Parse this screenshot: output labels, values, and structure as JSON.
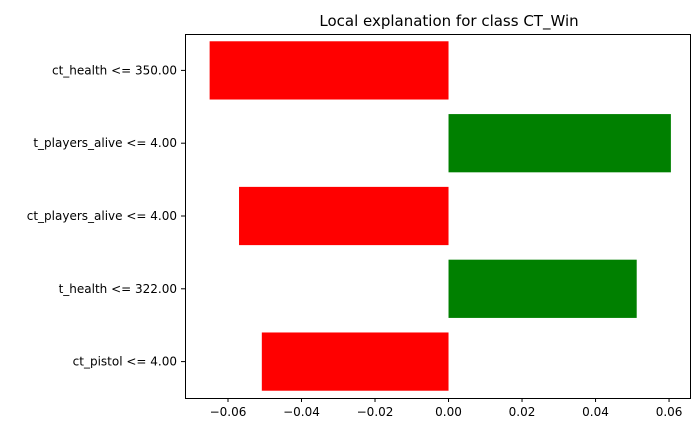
{
  "chart_data": {
    "type": "bar",
    "orientation": "horizontal",
    "title": "Local explanation for class CT_Win",
    "xlabel": "",
    "ylabel": "",
    "categories": [
      "ct_health <= 350.00",
      "t_players_alive <= 4.00",
      "ct_players_alive <= 4.00",
      "t_health <= 322.00",
      "ct_pistol <= 4.00"
    ],
    "values": [
      -0.065,
      0.0605,
      -0.057,
      0.0512,
      -0.0508
    ],
    "xlim": [
      -0.0717,
      0.0657
    ],
    "xticks": [
      -0.06,
      -0.04,
      -0.02,
      0.0,
      0.02,
      0.04,
      0.06
    ],
    "xtick_labels": [
      "−0.06",
      "−0.04",
      "−0.02",
      "0.00",
      "0.02",
      "0.04",
      "0.06"
    ],
    "grid": false,
    "colors": {
      "positive": "#008000",
      "negative": "#ff0000",
      "axis": "#000000"
    }
  }
}
